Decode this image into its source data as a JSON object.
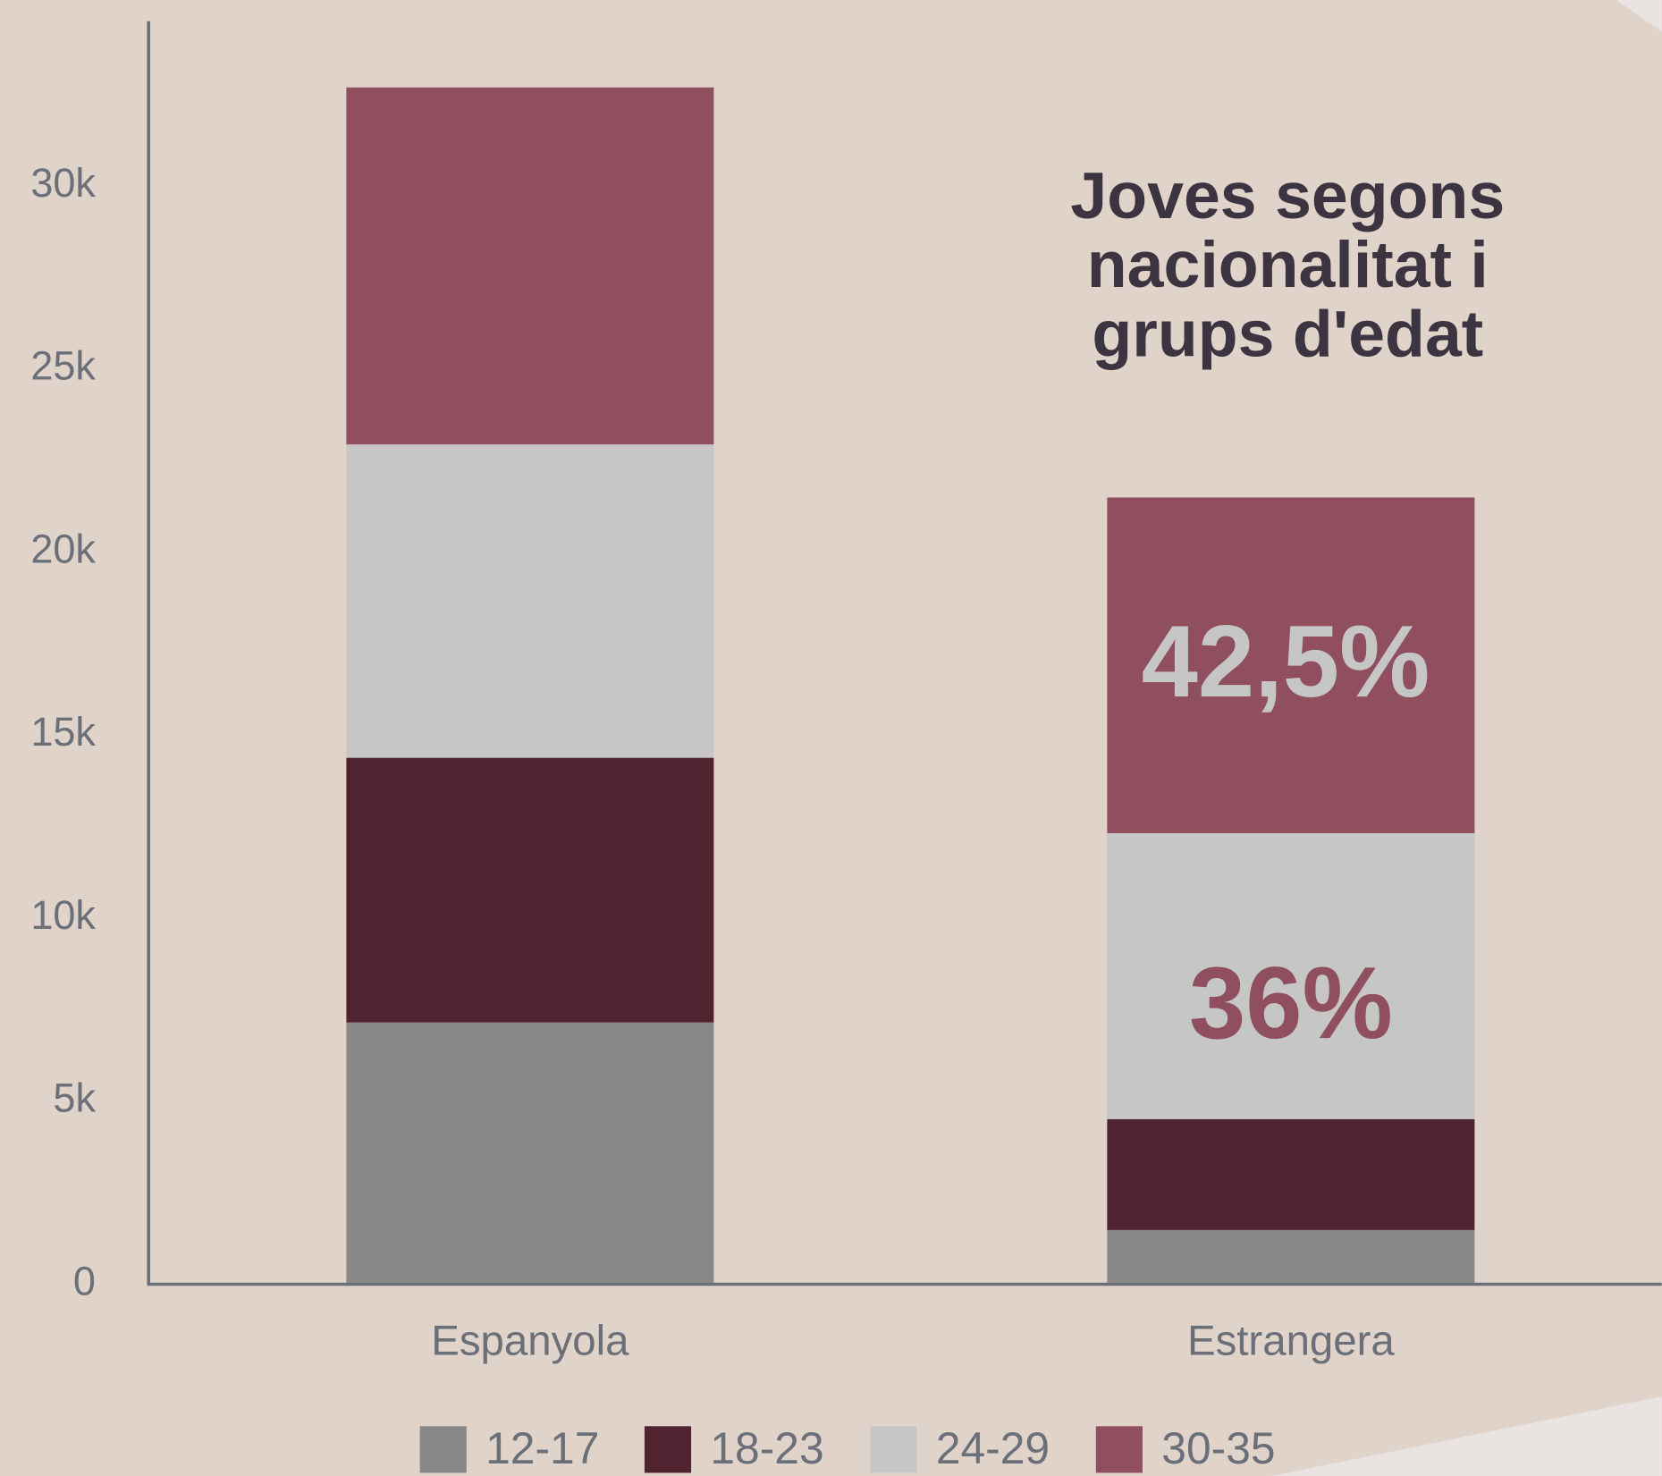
{
  "chart_data": {
    "type": "stacked_bar",
    "title": "Joves segons nacionalitat i grups d'edat",
    "categories": [
      "Espanyola",
      "Estrangera"
    ],
    "series": [
      {
        "name": "12-17",
        "color": "#888888",
        "values": [
          7150,
          1480
        ]
      },
      {
        "name": "18-23",
        "color": "#4f2330",
        "values": [
          7230,
          3030
        ]
      },
      {
        "name": "24-29",
        "color": "#c6c6c6",
        "values": [
          8560,
          7810
        ]
      },
      {
        "name": "30-35",
        "color": "#8f4f5f",
        "values": [
          9750,
          9170
        ]
      }
    ],
    "annotations": [
      "42,5%",
      "36%"
    ],
    "ylim": [
      0,
      34500
    ],
    "yticks": [
      0,
      {
        "value": 5000,
        "label": "5k"
      },
      {
        "value": 10000,
        "label": "10k"
      },
      {
        "value": 15000,
        "label": "15k"
      },
      {
        "value": 20000,
        "label": "20k"
      },
      {
        "value": 25000,
        "label": "25k"
      },
      {
        "value": 30000,
        "label": "30k"
      }
    ],
    "grid": false
  }
}
